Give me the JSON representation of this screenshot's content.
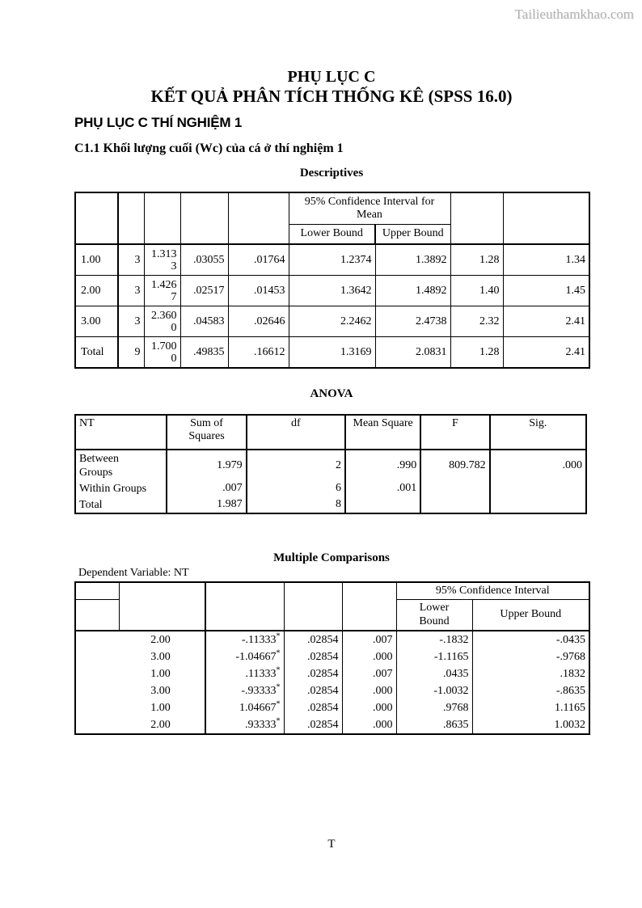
{
  "watermark": "Tailieuthamkhao.com",
  "page": {
    "title_line1": "PHỤ LỤC C",
    "title_line2": "KẾT QUẢ PHÂN TÍCH THỐNG KÊ (SPSS 16.0)",
    "section_heading": "PHỤ LỤC C THÍ NGHIỆM 1",
    "subsection_heading": "C1.1 Khối lượng cuối (Wc) của cá ở thí nghiệm 1",
    "footer": "T"
  },
  "descriptives": {
    "title": "Descriptives",
    "ci_header": "95% Confidence Interval for Mean",
    "lower_bound": "Lower Bound",
    "upper_bound": "Upper Bound",
    "rows": [
      [
        "1.00",
        "3",
        "1.313\n3",
        ".03055",
        ".01764",
        "1.2374",
        "1.3892",
        "1.28",
        "1.34"
      ],
      [
        "2.00",
        "3",
        "1.426\n7",
        ".02517",
        ".01453",
        "1.3642",
        "1.4892",
        "1.40",
        "1.45"
      ],
      [
        "3.00",
        "3",
        "2.360\n0",
        ".04583",
        ".02646",
        "2.2462",
        "2.4738",
        "2.32",
        "2.41"
      ],
      [
        "Total",
        "9",
        "1.700\n0",
        ".49835",
        ".16612",
        "1.3169",
        "2.0831",
        "1.28",
        "2.41"
      ]
    ]
  },
  "anova": {
    "title": "ANOVA",
    "headers": [
      "NT",
      "Sum of\nSquares",
      "df",
      "Mean Square",
      "F",
      "Sig."
    ],
    "rows": [
      [
        "Between\nGroups",
        "1.979",
        "2",
        ".990",
        "809.782",
        ".000"
      ],
      [
        "Within Groups",
        ".007",
        "6",
        ".001",
        "",
        ""
      ],
      [
        "Total",
        "1.987",
        "8",
        "",
        "",
        ""
      ]
    ]
  },
  "multiple_comparisons": {
    "title": "Multiple Comparisons",
    "dependent_variable": "Dependent Variable: NT",
    "ci_header": "95% Confidence Interval",
    "lower_bound": "Lower\nBound",
    "upper_bound": "Upper Bound",
    "rows": [
      [
        "2.00",
        "-.11333*",
        ".02854",
        ".007",
        "-.1832",
        "-.0435"
      ],
      [
        "3.00",
        "-1.04667*",
        ".02854",
        ".000",
        "-1.1165",
        "-.9768"
      ],
      [
        "1.00",
        ".11333*",
        ".02854",
        ".007",
        ".0435",
        ".1832"
      ],
      [
        "3.00",
        "-.93333*",
        ".02854",
        ".000",
        "-1.0032",
        "-.8635"
      ],
      [
        "1.00",
        "1.04667*",
        ".02854",
        ".000",
        ".9768",
        "1.1165"
      ],
      [
        "2.00",
        ".93333*",
        ".02854",
        ".000",
        ".8635",
        "1.0032"
      ]
    ]
  }
}
